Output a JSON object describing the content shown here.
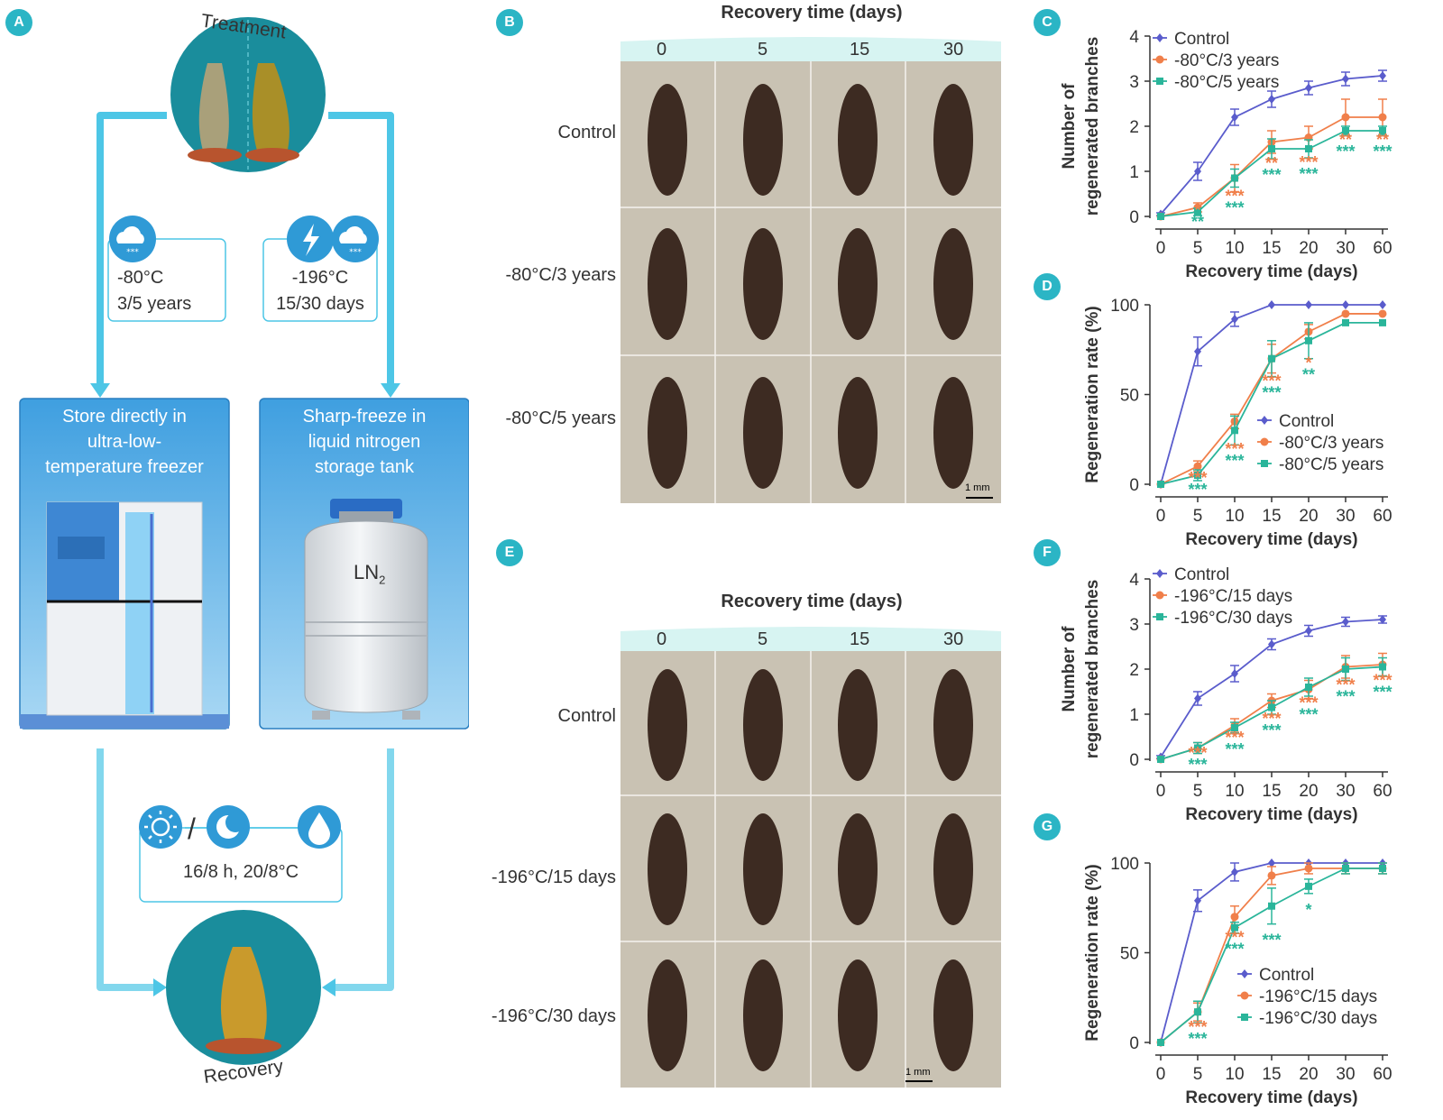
{
  "panel_letters": [
    "A",
    "B",
    "C",
    "D",
    "E",
    "F",
    "G"
  ],
  "panel_a": {
    "treatment_label": "Treatment",
    "recovery_label": "Recovery",
    "left_cond_line1": "-80°C",
    "left_cond_line2": "3/5 years",
    "right_cond_line1": "-196°C",
    "right_cond_line2": "15/30 days",
    "freezer_title": [
      "Store directly in",
      "ultra-low-",
      "temperature freezer"
    ],
    "ln2_title": [
      "Sharp-freeze in",
      "liquid nitrogen",
      "storage tank"
    ],
    "ln2_label": "LN",
    "ln2_sub": "2",
    "recovery_condition": "16/8 h, 20/8°C",
    "colors": {
      "teal": "#1a8d9c",
      "arrow": "#4dc6e6",
      "box_blue": "#4aa8e0"
    }
  },
  "panel_b": {
    "header": "Recovery time (days)",
    "columns": [
      "0",
      "5",
      "15",
      "30"
    ],
    "rows": [
      "Control",
      "-80°C/3 years",
      "-80°C/5 years"
    ],
    "scale_bar": "1 mm"
  },
  "panel_e": {
    "header": "Recovery time (days)",
    "columns": [
      "0",
      "5",
      "15",
      "30"
    ],
    "rows": [
      "Control",
      "-196°C/15 days",
      "-196°C/30 days"
    ],
    "scale_bar": "1 mm"
  },
  "chart_data": [
    {
      "panel": "C",
      "type": "line",
      "xlabel": "Recovery time (days)",
      "ylabel": [
        "Number of",
        "regenerated branches"
      ],
      "categories": [
        "0",
        "5",
        "10",
        "15",
        "20",
        "30",
        "60"
      ],
      "ylim": [
        0,
        4
      ],
      "yticks": [
        0,
        1,
        2,
        3,
        4
      ],
      "series": [
        {
          "name": "Control",
          "color": "#5a5ccc",
          "marker": "diamond",
          "values": [
            0.05,
            1.0,
            2.2,
            2.6,
            2.85,
            3.05,
            3.12
          ],
          "err": [
            0.03,
            0.2,
            0.18,
            0.18,
            0.15,
            0.15,
            0.12
          ]
        },
        {
          "name": "-80°C/3 years",
          "color": "#f07f4a",
          "marker": "circle",
          "values": [
            0,
            0.2,
            0.85,
            1.65,
            1.75,
            2.2,
            2.2
          ],
          "err": [
            0,
            0.1,
            0.3,
            0.25,
            0.25,
            0.4,
            0.4
          ]
        },
        {
          "name": "-80°C/5 years",
          "color": "#2ab59a",
          "marker": "square",
          "values": [
            0,
            0.1,
            0.85,
            1.5,
            1.5,
            1.9,
            1.9
          ],
          "err": [
            0,
            0.08,
            0.2,
            0.22,
            0.2,
            0.1,
            0.1
          ]
        }
      ],
      "annotations": [
        {
          "x": "5",
          "color": "#f07f4a",
          "text": "*"
        },
        {
          "x": "5",
          "color": "#2ab59a",
          "text": "**"
        },
        {
          "x": "10",
          "color": "#f07f4a",
          "text": "***"
        },
        {
          "x": "10",
          "color": "#2ab59a",
          "text": "***"
        },
        {
          "x": "15",
          "color": "#f07f4a",
          "text": "**"
        },
        {
          "x": "15",
          "color": "#2ab59a",
          "text": "***"
        },
        {
          "x": "20",
          "color": "#f07f4a",
          "text": "***"
        },
        {
          "x": "20",
          "color": "#2ab59a",
          "text": "***"
        },
        {
          "x": "30",
          "color": "#f07f4a",
          "text": "**"
        },
        {
          "x": "30",
          "color": "#2ab59a",
          "text": "***"
        },
        {
          "x": "60",
          "color": "#f07f4a",
          "text": "**"
        },
        {
          "x": "60",
          "color": "#2ab59a",
          "text": "***"
        }
      ],
      "legend": "top-left"
    },
    {
      "panel": "D",
      "type": "line",
      "xlabel": "Recovery time (days)",
      "ylabel": [
        "Regeneration rate (%)"
      ],
      "categories": [
        "0",
        "5",
        "10",
        "15",
        "20",
        "30",
        "60"
      ],
      "ylim": [
        0,
        100
      ],
      "yticks": [
        0,
        50,
        100
      ],
      "series": [
        {
          "name": "Control",
          "color": "#5a5ccc",
          "marker": "diamond",
          "values": [
            0,
            74,
            92,
            100,
            100,
            100,
            100
          ],
          "err": [
            0,
            8,
            4,
            0,
            0,
            0,
            0
          ]
        },
        {
          "name": "-80°C/3 years",
          "color": "#f07f4a",
          "marker": "circle",
          "values": [
            0,
            10,
            35,
            70,
            85,
            95,
            95
          ],
          "err": [
            0,
            3,
            4,
            8,
            4,
            0,
            0
          ]
        },
        {
          "name": "-80°C/5 years",
          "color": "#2ab59a",
          "marker": "square",
          "values": [
            0,
            5,
            30,
            70,
            80,
            90,
            90
          ],
          "err": [
            0,
            3,
            8,
            10,
            10,
            0,
            0
          ]
        }
      ],
      "annotations": [
        {
          "x": "5",
          "color": "#f07f4a",
          "text": "***"
        },
        {
          "x": "5",
          "color": "#2ab59a",
          "text": "***"
        },
        {
          "x": "10",
          "color": "#f07f4a",
          "text": "***"
        },
        {
          "x": "10",
          "color": "#2ab59a",
          "text": "***"
        },
        {
          "x": "15",
          "color": "#f07f4a",
          "text": "***"
        },
        {
          "x": "15",
          "color": "#2ab59a",
          "text": "***"
        },
        {
          "x": "20",
          "color": "#f07f4a",
          "text": "*"
        },
        {
          "x": "20",
          "color": "#2ab59a",
          "text": "**"
        }
      ],
      "legend": "bottom-right"
    },
    {
      "panel": "F",
      "type": "line",
      "xlabel": "Recovery time (days)",
      "ylabel": [
        "Number of",
        "regenerated branches"
      ],
      "categories": [
        "0",
        "5",
        "10",
        "15",
        "20",
        "30",
        "60"
      ],
      "ylim": [
        0,
        4
      ],
      "yticks": [
        0,
        1,
        2,
        3,
        4
      ],
      "series": [
        {
          "name": "Control",
          "color": "#5a5ccc",
          "marker": "diamond",
          "values": [
            0.05,
            1.35,
            1.9,
            2.55,
            2.85,
            3.05,
            3.1
          ],
          "err": [
            0.03,
            0.15,
            0.18,
            0.12,
            0.12,
            0.1,
            0.08
          ]
        },
        {
          "name": "-196°C/15 days",
          "color": "#f07f4a",
          "marker": "circle",
          "values": [
            0,
            0.25,
            0.75,
            1.3,
            1.55,
            2.05,
            2.1
          ],
          "err": [
            0,
            0.12,
            0.15,
            0.15,
            0.2,
            0.25,
            0.25
          ]
        },
        {
          "name": "-196°C/30 days",
          "color": "#2ab59a",
          "marker": "square",
          "values": [
            0,
            0.25,
            0.7,
            1.15,
            1.6,
            2.0,
            2.05
          ],
          "err": [
            0,
            0.12,
            0.12,
            0.15,
            0.2,
            0.25,
            0.2
          ]
        }
      ],
      "annotations": [
        {
          "x": "5",
          "color": "#f07f4a",
          "text": "***"
        },
        {
          "x": "5",
          "color": "#2ab59a",
          "text": "***"
        },
        {
          "x": "10",
          "color": "#f07f4a",
          "text": "***"
        },
        {
          "x": "10",
          "color": "#2ab59a",
          "text": "***"
        },
        {
          "x": "15",
          "color": "#f07f4a",
          "text": "***"
        },
        {
          "x": "15",
          "color": "#2ab59a",
          "text": "***"
        },
        {
          "x": "20",
          "color": "#f07f4a",
          "text": "***"
        },
        {
          "x": "20",
          "color": "#2ab59a",
          "text": "***"
        },
        {
          "x": "30",
          "color": "#f07f4a",
          "text": "***"
        },
        {
          "x": "30",
          "color": "#2ab59a",
          "text": "***"
        },
        {
          "x": "60",
          "color": "#f07f4a",
          "text": "***"
        },
        {
          "x": "60",
          "color": "#2ab59a",
          "text": "***"
        }
      ],
      "legend": "top-left"
    },
    {
      "panel": "G",
      "type": "line",
      "xlabel": "Recovery time (days)",
      "ylabel": [
        "Regeneration rate (%)"
      ],
      "categories": [
        "0",
        "5",
        "10",
        "15",
        "20",
        "30",
        "60"
      ],
      "ylim": [
        0,
        100
      ],
      "yticks": [
        0,
        50,
        100
      ],
      "series": [
        {
          "name": "Control",
          "color": "#5a5ccc",
          "marker": "diamond",
          "values": [
            0,
            79,
            95,
            100,
            100,
            100,
            100
          ],
          "err": [
            0,
            6,
            5,
            0,
            0,
            0,
            0
          ]
        },
        {
          "name": "-196°C/15 days",
          "color": "#f07f4a",
          "marker": "circle",
          "values": [
            0,
            17,
            70,
            93,
            97,
            97,
            97
          ],
          "err": [
            0,
            5,
            6,
            5,
            3,
            3,
            3
          ]
        },
        {
          "name": "-196°C/30 days",
          "color": "#2ab59a",
          "marker": "square",
          "values": [
            0,
            17,
            64,
            76,
            87,
            97,
            97
          ],
          "err": [
            0,
            6,
            3,
            10,
            4,
            3,
            3
          ]
        }
      ],
      "annotations": [
        {
          "x": "5",
          "color": "#f07f4a",
          "text": "***"
        },
        {
          "x": "5",
          "color": "#2ab59a",
          "text": "***"
        },
        {
          "x": "10",
          "color": "#f07f4a",
          "text": "***"
        },
        {
          "x": "10",
          "color": "#2ab59a",
          "text": "***"
        },
        {
          "x": "15",
          "color": "#2ab59a",
          "text": "***"
        },
        {
          "x": "20",
          "color": "#2ab59a",
          "text": "*"
        }
      ],
      "legend": "bottom-right"
    }
  ]
}
